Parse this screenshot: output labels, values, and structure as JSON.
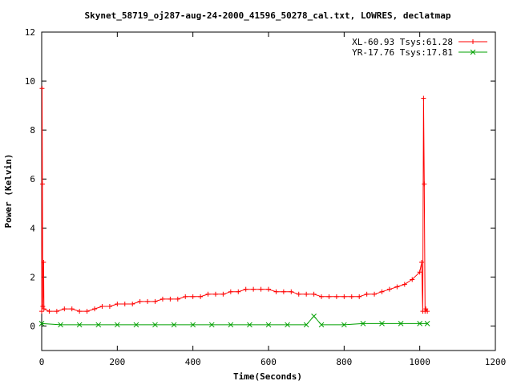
{
  "chart_data": {
    "type": "line",
    "title": "Skynet_58719_oj287-aug-24-2000_41596_50278_cal.txt, LOWRES, declatmap",
    "xlabel": "Time(Seconds)",
    "ylabel": "Power (Kelvin)",
    "xlim": [
      0,
      1200
    ],
    "ylim": [
      -1,
      12
    ],
    "xticks": [
      "0",
      "200",
      "400",
      "600",
      "800",
      "1000",
      "1200"
    ],
    "yticks": [
      "0",
      "2",
      "4",
      "6",
      "8",
      "10",
      "12"
    ],
    "legend_position": "top-right",
    "grid": false,
    "series": [
      {
        "name": "XL-60.93 Tsys:61.28",
        "color": "#ff0000",
        "marker": "plus",
        "points": [
          [
            0,
            0.6
          ],
          [
            1,
            9.7
          ],
          [
            2,
            5.8
          ],
          [
            3,
            0.8
          ],
          [
            5,
            2.6
          ],
          [
            6,
            0.7
          ],
          [
            20,
            0.6
          ],
          [
            40,
            0.6
          ],
          [
            60,
            0.7
          ],
          [
            80,
            0.7
          ],
          [
            100,
            0.6
          ],
          [
            120,
            0.6
          ],
          [
            140,
            0.7
          ],
          [
            160,
            0.8
          ],
          [
            180,
            0.8
          ],
          [
            200,
            0.9
          ],
          [
            220,
            0.9
          ],
          [
            240,
            0.9
          ],
          [
            260,
            1.0
          ],
          [
            280,
            1.0
          ],
          [
            300,
            1.0
          ],
          [
            320,
            1.1
          ],
          [
            340,
            1.1
          ],
          [
            360,
            1.1
          ],
          [
            380,
            1.2
          ],
          [
            400,
            1.2
          ],
          [
            420,
            1.2
          ],
          [
            440,
            1.3
          ],
          [
            460,
            1.3
          ],
          [
            480,
            1.3
          ],
          [
            500,
            1.4
          ],
          [
            520,
            1.4
          ],
          [
            540,
            1.5
          ],
          [
            560,
            1.5
          ],
          [
            580,
            1.5
          ],
          [
            600,
            1.5
          ],
          [
            620,
            1.4
          ],
          [
            640,
            1.4
          ],
          [
            660,
            1.4
          ],
          [
            680,
            1.3
          ],
          [
            700,
            1.3
          ],
          [
            720,
            1.3
          ],
          [
            740,
            1.2
          ],
          [
            760,
            1.2
          ],
          [
            780,
            1.2
          ],
          [
            800,
            1.2
          ],
          [
            820,
            1.2
          ],
          [
            840,
            1.2
          ],
          [
            860,
            1.3
          ],
          [
            880,
            1.3
          ],
          [
            900,
            1.4
          ],
          [
            920,
            1.5
          ],
          [
            940,
            1.6
          ],
          [
            960,
            1.7
          ],
          [
            980,
            1.9
          ],
          [
            1000,
            2.2
          ],
          [
            1005,
            2.6
          ],
          [
            1008,
            0.6
          ],
          [
            1010,
            9.3
          ],
          [
            1012,
            5.8
          ],
          [
            1014,
            0.6
          ],
          [
            1016,
            0.7
          ],
          [
            1020,
            0.6
          ]
        ]
      },
      {
        "name": "YR-17.76 Tsys:17.81",
        "color": "#00a000",
        "marker": "cross",
        "points": [
          [
            0,
            0.1
          ],
          [
            50,
            0.05
          ],
          [
            100,
            0.05
          ],
          [
            150,
            0.05
          ],
          [
            200,
            0.05
          ],
          [
            250,
            0.05
          ],
          [
            300,
            0.05
          ],
          [
            350,
            0.05
          ],
          [
            400,
            0.05
          ],
          [
            450,
            0.05
          ],
          [
            500,
            0.05
          ],
          [
            550,
            0.05
          ],
          [
            600,
            0.05
          ],
          [
            650,
            0.05
          ],
          [
            700,
            0.05
          ],
          [
            720,
            0.4
          ],
          [
            740,
            0.05
          ],
          [
            800,
            0.05
          ],
          [
            850,
            0.1
          ],
          [
            900,
            0.1
          ],
          [
            950,
            0.1
          ],
          [
            1000,
            0.1
          ],
          [
            1020,
            0.1
          ]
        ]
      }
    ]
  }
}
